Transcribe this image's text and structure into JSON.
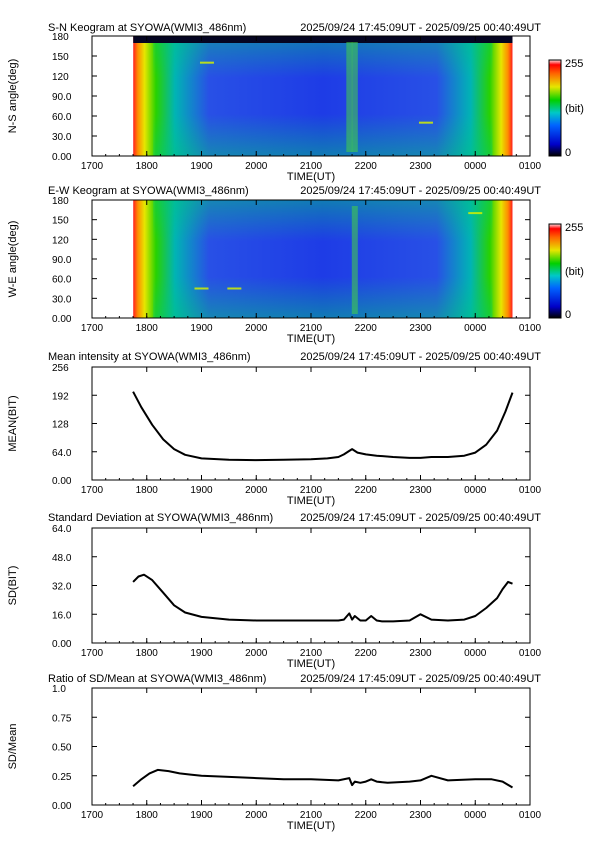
{
  "time_range": "2025/09/24 17:45:09UT - 2025/09/25 00:40:49UT",
  "colors": {
    "plot_line": "#000000",
    "frame": "#000000",
    "background": "#ffffff"
  },
  "colorbar": {
    "max_label": "255",
    "unit_label": "(bit)",
    "min_label": "0"
  },
  "chart_data": [
    {
      "id": "sn_keogram",
      "type": "heatmap",
      "title": "S-N Keogram at SYOWA(WMI3_486nm)",
      "xlabel": "TIME(UT)",
      "ylabel": "N-S angle(deg)",
      "x_ticks": [
        "1700",
        "1800",
        "1900",
        "2000",
        "2100",
        "2200",
        "2300",
        "0000",
        "0100"
      ],
      "y_ticks": [
        "0.00",
        "30.0",
        "60.0",
        "90.0",
        "120",
        "150",
        "180"
      ],
      "ylim": [
        0,
        180
      ],
      "xlim_hours": [
        17.0,
        25.0
      ],
      "data_start_hour": 17.753,
      "data_end_hour": 24.68,
      "value_range_bit": [
        0,
        255
      ],
      "colormap": "rainbow",
      "features": [
        {
          "hour": 21.7,
          "angle_deg": 120,
          "label": "brightening"
        },
        {
          "hour": 21.8,
          "angle_deg": 80,
          "label": "brightening"
        },
        {
          "hour": 19.1,
          "angle_deg": 140,
          "label": "streak"
        },
        {
          "hour": 23.1,
          "angle_deg": 50,
          "label": "streak"
        }
      ]
    },
    {
      "id": "ew_keogram",
      "type": "heatmap",
      "title": "E-W Keogram at SYOWA(WMI3_486nm)",
      "xlabel": "TIME(UT)",
      "ylabel": "W-E angle(deg)",
      "x_ticks": [
        "1700",
        "1800",
        "1900",
        "2000",
        "2100",
        "2200",
        "2300",
        "0000",
        "0100"
      ],
      "y_ticks": [
        "0.00",
        "30.0",
        "60.0",
        "90.0",
        "120",
        "150",
        "180"
      ],
      "ylim": [
        0,
        180
      ],
      "xlim_hours": [
        17.0,
        25.0
      ],
      "data_start_hour": 17.753,
      "data_end_hour": 24.68,
      "value_range_bit": [
        0,
        255
      ],
      "colormap": "rainbow",
      "features": [
        {
          "hour": 21.8,
          "angle_deg": 110,
          "label": "brightening"
        },
        {
          "hour": 19.0,
          "angle_deg": 45,
          "label": "streak"
        },
        {
          "hour": 19.6,
          "angle_deg": 45,
          "label": "streak"
        },
        {
          "hour": 24.0,
          "angle_deg": 160,
          "label": "streak"
        }
      ]
    },
    {
      "id": "mean",
      "type": "line",
      "title": "Mean intensity at SYOWA(WMI3_486nm)",
      "xlabel": "TIME(UT)",
      "ylabel": "MEAN(BIT)",
      "x_ticks": [
        "1700",
        "1800",
        "1900",
        "2000",
        "2100",
        "2200",
        "2300",
        "0000",
        "0100"
      ],
      "y_ticks": [
        "0.00",
        "64.0",
        "128",
        "192",
        "256"
      ],
      "ylim": [
        0,
        256
      ],
      "xlim_hours": [
        17.0,
        25.0
      ],
      "x": [
        17.75,
        17.9,
        18.1,
        18.3,
        18.5,
        18.7,
        19.0,
        19.5,
        20.0,
        20.5,
        21.0,
        21.3,
        21.5,
        21.6,
        21.7,
        21.75,
        21.85,
        22.0,
        22.2,
        22.5,
        22.8,
        23.0,
        23.2,
        23.5,
        23.8,
        24.0,
        24.2,
        24.4,
        24.55,
        24.68
      ],
      "y": [
        200,
        165,
        125,
        92,
        70,
        57,
        49,
        46,
        45,
        46,
        47,
        49,
        52,
        58,
        66,
        70,
        62,
        58,
        55,
        52,
        50,
        50,
        52,
        52,
        55,
        62,
        80,
        112,
        155,
        198
      ]
    },
    {
      "id": "stddev",
      "type": "line",
      "title": "Standard Deviation at SYOWA(WMI3_486nm)",
      "xlabel": "TIME(UT)",
      "ylabel": "SD(BIT)",
      "x_ticks": [
        "1700",
        "1800",
        "1900",
        "2000",
        "2100",
        "2200",
        "2300",
        "0000",
        "0100"
      ],
      "y_ticks": [
        "0.00",
        "16.0",
        "32.0",
        "48.0",
        "64.0"
      ],
      "ylim": [
        0,
        64
      ],
      "xlim_hours": [
        17.0,
        25.0
      ],
      "x": [
        17.75,
        17.85,
        17.95,
        18.1,
        18.3,
        18.5,
        18.7,
        19.0,
        19.5,
        20.0,
        20.5,
        21.0,
        21.5,
        21.6,
        21.7,
        21.75,
        21.8,
        21.9,
        22.0,
        22.1,
        22.2,
        22.3,
        22.5,
        22.8,
        23.0,
        23.2,
        23.5,
        23.8,
        24.0,
        24.2,
        24.4,
        24.5,
        24.6,
        24.68
      ],
      "y": [
        34,
        37,
        38,
        35,
        28,
        21,
        17,
        14.5,
        13,
        12.5,
        12.5,
        12.5,
        12.5,
        13,
        16.5,
        13,
        15,
        12.5,
        12.5,
        15,
        12.5,
        12,
        12,
        12.5,
        16,
        13,
        12.5,
        13,
        15,
        19.5,
        25,
        30,
        34,
        33
      ]
    },
    {
      "id": "ratio",
      "type": "line",
      "title": "Ratio of SD/Mean at SYOWA(WMI3_486nm)",
      "xlabel": "TIME(UT)",
      "ylabel": "SD/Mean",
      "x_ticks": [
        "1700",
        "1800",
        "1900",
        "2000",
        "2100",
        "2200",
        "2300",
        "0000",
        "0100"
      ],
      "y_ticks": [
        "0.00",
        "0.25",
        "0.50",
        "0.75",
        "1.0"
      ],
      "ylim": [
        0,
        1
      ],
      "xlim_hours": [
        17.0,
        25.0
      ],
      "x": [
        17.75,
        17.9,
        18.05,
        18.2,
        18.4,
        18.6,
        18.8,
        19.0,
        19.5,
        20.0,
        20.5,
        21.0,
        21.5,
        21.7,
        21.75,
        21.8,
        21.9,
        22.0,
        22.1,
        22.2,
        22.4,
        22.8,
        23.0,
        23.2,
        23.5,
        24.0,
        24.3,
        24.5,
        24.68
      ],
      "y": [
        0.16,
        0.22,
        0.27,
        0.3,
        0.29,
        0.27,
        0.26,
        0.25,
        0.24,
        0.23,
        0.22,
        0.22,
        0.21,
        0.23,
        0.17,
        0.2,
        0.19,
        0.2,
        0.22,
        0.2,
        0.19,
        0.2,
        0.21,
        0.25,
        0.21,
        0.22,
        0.22,
        0.2,
        0.15
      ]
    }
  ]
}
